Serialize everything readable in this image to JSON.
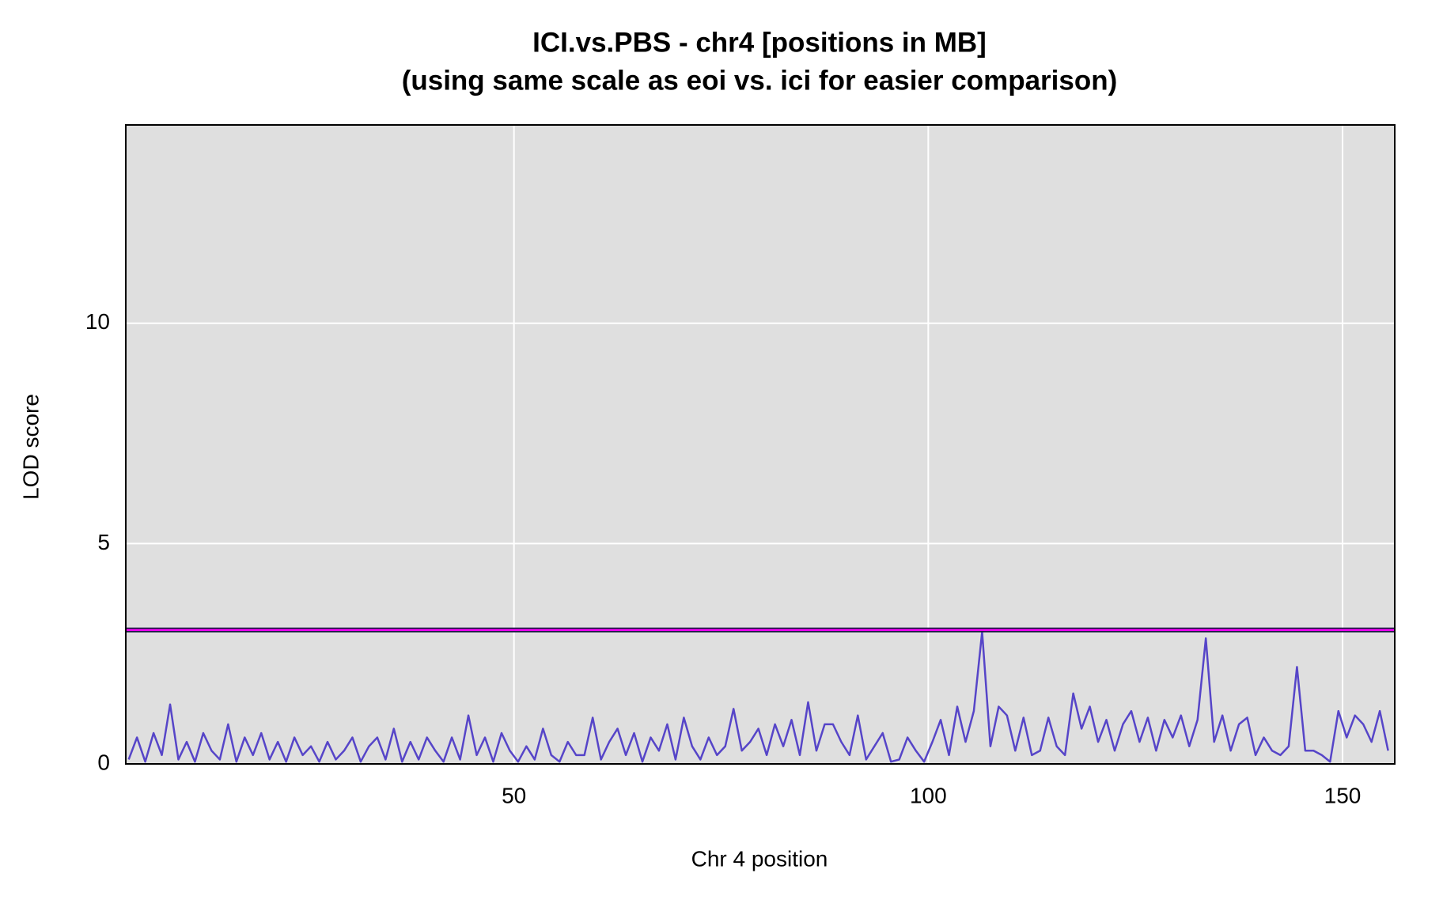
{
  "chart_data": {
    "type": "line",
    "title": "ICI.vs.PBS - chr4 [positions in MB]",
    "subtitle": "(using same scale as eoi vs. ici for easier comparison)",
    "x_label": "Chr 4 position",
    "y_label": "LOD score",
    "xlim": [
      3.15,
      156.3
    ],
    "xticks": [
      50,
      100,
      150
    ],
    "ylim": [
      0,
      14.5
    ],
    "yticks": [
      0,
      5,
      10
    ],
    "grid": true,
    "threshold": {
      "value": 3.04,
      "color": "#ff00ff"
    },
    "x": [
      3.5,
      4.5,
      5.5,
      6.5,
      7.5,
      8.5,
      9.5,
      10.5,
      11.5,
      12.5,
      13.5,
      14.5,
      15.5,
      16.5,
      17.5,
      18.5,
      19.5,
      20.5,
      21.5,
      22.5,
      23.5,
      24.5,
      25.5,
      26.5,
      27.5,
      28.5,
      29.5,
      30.5,
      31.5,
      32.5,
      33.5,
      34.5,
      35.5,
      36.5,
      37.5,
      38.5,
      39.5,
      40.5,
      41.5,
      42.5,
      43.5,
      44.5,
      45.5,
      46.5,
      47.5,
      48.5,
      49.5,
      50.5,
      51.5,
      52.5,
      53.5,
      54.5,
      55.5,
      56.5,
      57.5,
      58.5,
      59.5,
      60.5,
      61.5,
      62.5,
      63.5,
      64.5,
      65.5,
      66.5,
      67.5,
      68.5,
      69.5,
      70.5,
      71.5,
      72.5,
      73.5,
      74.5,
      75.5,
      76.5,
      77.5,
      78.5,
      79.5,
      80.5,
      81.5,
      82.5,
      83.5,
      84.5,
      85.5,
      86.5,
      87.5,
      88.5,
      89.5,
      90.5,
      91.5,
      92.5,
      93.5,
      94.5,
      95.5,
      96.5,
      97.5,
      98.5,
      99.5,
      100.5,
      101.5,
      102.5,
      103.5,
      104.5,
      105.5,
      106.5,
      107.5,
      108.5,
      109.5,
      110.5,
      111.5,
      112.5,
      113.5,
      114.5,
      115.5,
      116.5,
      117.5,
      118.5,
      119.5,
      120.5,
      121.5,
      122.5,
      123.5,
      124.5,
      125.5,
      126.5,
      127.5,
      128.5,
      129.5,
      130.5,
      131.5,
      132.5,
      133.5,
      134.5,
      135.5,
      136.5,
      137.5,
      138.5,
      139.5,
      140.5,
      141.5,
      142.5,
      143.5,
      144.5,
      145.5,
      146.5,
      147.5,
      148.5,
      149.5,
      150.5,
      151.5,
      152.5,
      153.5,
      154.5,
      155.5
    ],
    "series": [
      {
        "name": "LOD",
        "color": "#5645c8",
        "values": [
          0.1,
          0.6,
          0.05,
          0.7,
          0.2,
          1.35,
          0.1,
          0.5,
          0.05,
          0.7,
          0.3,
          0.1,
          0.9,
          0.05,
          0.6,
          0.2,
          0.7,
          0.1,
          0.5,
          0.05,
          0.6,
          0.2,
          0.4,
          0.05,
          0.5,
          0.1,
          0.3,
          0.6,
          0.05,
          0.4,
          0.6,
          0.1,
          0.8,
          0.05,
          0.5,
          0.1,
          0.6,
          0.3,
          0.05,
          0.6,
          0.1,
          1.1,
          0.2,
          0.6,
          0.05,
          0.7,
          0.3,
          0.05,
          0.4,
          0.1,
          0.8,
          0.2,
          0.05,
          0.5,
          0.2,
          0.2,
          1.05,
          0.1,
          0.5,
          0.8,
          0.2,
          0.7,
          0.05,
          0.6,
          0.3,
          0.9,
          0.1,
          1.05,
          0.4,
          0.1,
          0.6,
          0.2,
          0.4,
          1.25,
          0.3,
          0.5,
          0.8,
          0.2,
          0.9,
          0.4,
          1.0,
          0.2,
          1.4,
          0.3,
          0.9,
          0.9,
          0.5,
          0.2,
          1.1,
          0.1,
          0.4,
          0.7,
          0.05,
          0.1,
          0.6,
          0.3,
          0.05,
          0.5,
          1.0,
          0.2,
          1.3,
          0.5,
          1.2,
          3.0,
          0.4,
          1.3,
          1.1,
          0.3,
          1.05,
          0.2,
          0.3,
          1.05,
          0.4,
          0.2,
          1.6,
          0.8,
          1.3,
          0.5,
          1.0,
          0.3,
          0.9,
          1.2,
          0.5,
          1.05,
          0.3,
          1.0,
          0.6,
          1.1,
          0.4,
          1.0,
          2.85,
          0.5,
          1.1,
          0.3,
          0.9,
          1.05,
          0.2,
          0.6,
          0.3,
          0.2,
          0.4,
          2.2,
          0.3,
          0.3,
          0.2,
          0.05,
          1.2,
          0.6,
          1.1,
          0.9,
          0.5,
          1.2,
          0.3
        ]
      }
    ]
  }
}
